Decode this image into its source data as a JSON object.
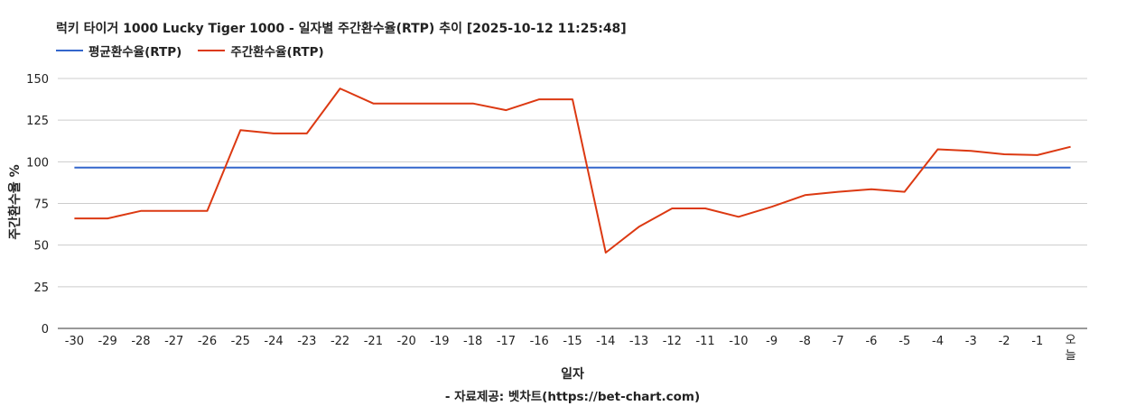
{
  "chart_data": {
    "type": "line",
    "title": "럭키 타이거 1000 Lucky Tiger 1000 - 일자별 주간환수율(RTP) 추이 [2025-10-12 11:25:48]",
    "xlabel": "일자",
    "ylabel": "주간환수율 %",
    "source": "- 자료제공: 벳차트(https://bet-chart.com)",
    "ylim": [
      0,
      150
    ],
    "y_ticks": [
      0,
      25,
      50,
      75,
      100,
      125,
      150
    ],
    "grid": true,
    "legend_position": "top-left",
    "categories": [
      "-30",
      "-29",
      "-28",
      "-27",
      "-26",
      "-25",
      "-24",
      "-23",
      "-22",
      "-21",
      "-20",
      "-19",
      "-18",
      "-17",
      "-16",
      "-15",
      "-14",
      "-13",
      "-12",
      "-11",
      "-10",
      "-9",
      "-8",
      "-7",
      "-6",
      "-5",
      "-4",
      "-3",
      "-2",
      "-1",
      "오늘"
    ],
    "series": [
      {
        "name": "평균환수율(RTP)",
        "color": "#3366cc",
        "values": [
          96.5,
          96.5,
          96.5,
          96.5,
          96.5,
          96.5,
          96.5,
          96.5,
          96.5,
          96.5,
          96.5,
          96.5,
          96.5,
          96.5,
          96.5,
          96.5,
          96.5,
          96.5,
          96.5,
          96.5,
          96.5,
          96.5,
          96.5,
          96.5,
          96.5,
          96.5,
          96.5,
          96.5,
          96.5,
          96.5,
          96.5
        ]
      },
      {
        "name": "주간환수율(RTP)",
        "color": "#dc3912",
        "values": [
          66,
          66,
          70.5,
          70.5,
          70.5,
          119,
          117,
          117,
          144,
          135,
          135,
          135,
          135,
          131,
          137.5,
          137.5,
          45.5,
          61,
          72,
          72,
          67,
          73,
          80,
          82,
          83.5,
          82,
          107.5,
          106.5,
          104.5,
          104,
          109
        ]
      }
    ]
  }
}
